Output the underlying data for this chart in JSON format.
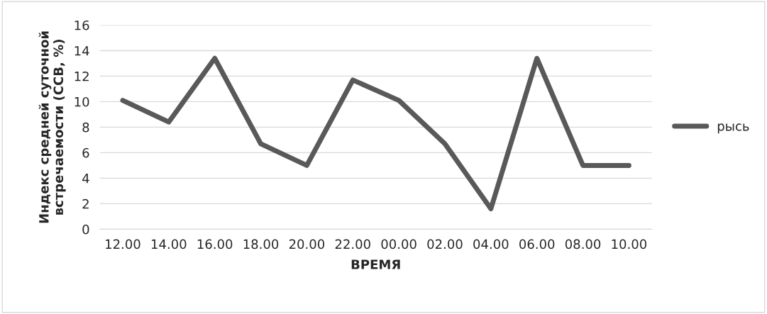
{
  "chart_data": {
    "type": "line",
    "xlabel": "ВРЕМЯ",
    "ylabel": "Индекс средней суточной\nвстречаемости (ССВ, %)",
    "categories": [
      "12.00",
      "14.00",
      "16.00",
      "18.00",
      "20.00",
      "22.00",
      "00.00",
      "02.00",
      "04.00",
      "06.00",
      "08.00",
      "10.00"
    ],
    "series": [
      {
        "name": "рысь",
        "color": "#595959",
        "values": [
          10.1,
          8.4,
          13.4,
          6.7,
          5.0,
          11.7,
          10.1,
          6.7,
          1.6,
          13.4,
          5.0,
          5.0
        ]
      }
    ],
    "ylim": [
      0,
      16
    ],
    "yticks": [
      0,
      2,
      4,
      6,
      8,
      10,
      12,
      14,
      16
    ],
    "grid": "y",
    "legend": "right",
    "marker": "none",
    "line_style": "solid"
  }
}
